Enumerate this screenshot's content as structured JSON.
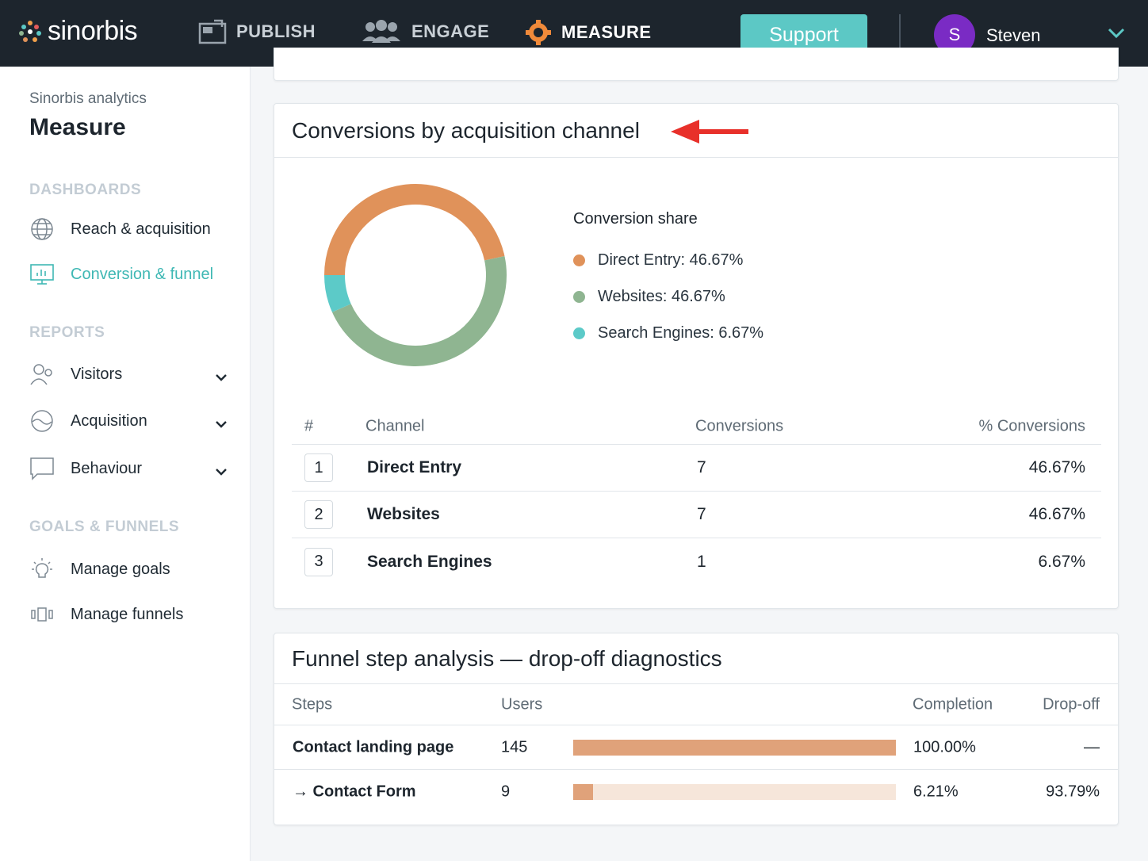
{
  "brand": {
    "name": "sinorbis"
  },
  "nav": {
    "items": [
      {
        "label": "PUBLISH",
        "icon": "publish-icon"
      },
      {
        "label": "ENGAGE",
        "icon": "users-icon"
      },
      {
        "label": "MEASURE",
        "icon": "gear-icon",
        "active": true
      }
    ],
    "support_label": "Support",
    "user": {
      "initial": "S",
      "name": "Steven"
    }
  },
  "sidebar": {
    "subtitle": "Sinorbis analytics",
    "title": "Measure",
    "sections": {
      "dashboards": "DASHBOARDS",
      "reports": "REPORTS",
      "goals": "GOALS & FUNNELS"
    },
    "dashboards": [
      {
        "label": "Reach & acquisition",
        "icon": "globe-icon"
      },
      {
        "label": "Conversion & funnel",
        "icon": "monitor-chart-icon",
        "active": true
      }
    ],
    "reports": [
      {
        "label": "Visitors",
        "icon": "visitors-icon"
      },
      {
        "label": "Acquisition",
        "icon": "acquisition-icon"
      },
      {
        "label": "Behaviour",
        "icon": "chat-bubble-icon"
      }
    ],
    "goals": [
      {
        "label": "Manage goals",
        "icon": "lightbulb-icon"
      },
      {
        "label": "Manage funnels",
        "icon": "funnel-icon"
      }
    ]
  },
  "conversions_card": {
    "title": "Conversions by acquisition channel",
    "legend_title": "Conversion share",
    "legend": [
      {
        "label": "Direct Entry: 46.67%",
        "color": "#e0925a"
      },
      {
        "label": "Websites: 46.67%",
        "color": "#8fb591"
      },
      {
        "label": "Search Engines: 6.67%",
        "color": "#5ccac8"
      }
    ],
    "table": {
      "headers": {
        "rank": "#",
        "channel": "Channel",
        "conversions": "Conversions",
        "pct": "% Conversions"
      },
      "rows": [
        {
          "rank": "1",
          "channel": "Direct Entry",
          "conversions": "7",
          "pct": "46.67%"
        },
        {
          "rank": "2",
          "channel": "Websites",
          "conversions": "7",
          "pct": "46.67%"
        },
        {
          "rank": "3",
          "channel": "Search Engines",
          "conversions": "1",
          "pct": "6.67%"
        }
      ]
    }
  },
  "chart_data": {
    "type": "pie",
    "categories": [
      "Direct Entry",
      "Websites",
      "Search Engines"
    ],
    "values": [
      46.67,
      46.67,
      6.67
    ],
    "colors": [
      "#e0925a",
      "#8fb591",
      "#5ccac8"
    ],
    "title": "Conversions by acquisition channel"
  },
  "funnel_card": {
    "title": "Funnel step analysis — drop-off diagnostics",
    "headers": {
      "steps": "Steps",
      "users": "Users",
      "completion": "Completion",
      "dropoff": "Drop-off"
    },
    "rows": [
      {
        "step": "Contact landing page",
        "users": "145",
        "completion": "100.00%",
        "completion_value": 100,
        "dropoff": "—"
      },
      {
        "step": "→ Contact Form",
        "users": "9",
        "completion": "6.21%",
        "completion_value": 6.21,
        "dropoff": "93.79%"
      }
    ]
  }
}
